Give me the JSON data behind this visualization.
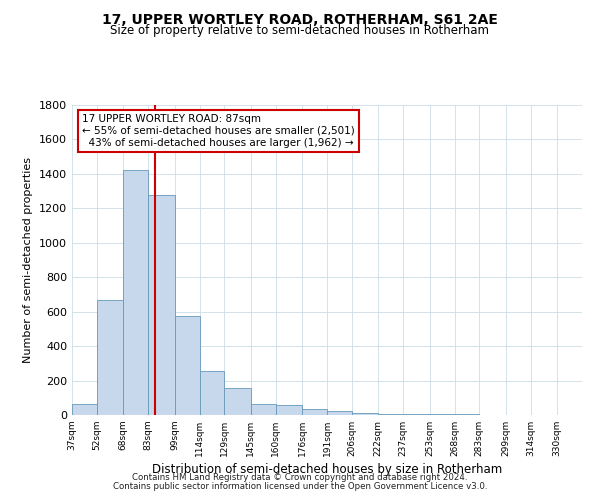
{
  "title": "17, UPPER WORTLEY ROAD, ROTHERHAM, S61 2AE",
  "subtitle": "Size of property relative to semi-detached houses in Rotherham",
  "xlabel": "Distribution of semi-detached houses by size in Rotherham",
  "ylabel": "Number of semi-detached properties",
  "bar_color": "#c8d8ec",
  "bar_edge_color": "#7aа8cc",
  "vline_x": 87,
  "vline_color": "#cc0000",
  "annotation_line1": "17 UPPER WORTLEY ROAD: 87sqm",
  "annotation_line2": "← 55% of semi-detached houses are smaller (2,501)",
  "annotation_line3": "  43% of semi-detached houses are larger (1,962) →",
  "annotation_box_color": "#cc0000",
  "footnote1": "Contains HM Land Registry data © Crown copyright and database right 2024.",
  "footnote2": "Contains public sector information licensed under the Open Government Licence v3.0.",
  "bins": [
    37,
    52,
    68,
    83,
    99,
    114,
    129,
    145,
    160,
    176,
    191,
    206,
    222,
    237,
    253,
    268,
    283,
    299,
    314,
    330,
    345
  ],
  "counts": [
    65,
    670,
    1420,
    1280,
    575,
    255,
    155,
    65,
    58,
    35,
    25,
    10,
    8,
    5,
    4,
    3,
    2,
    2,
    1,
    0
  ],
  "ylim": [
    0,
    1800
  ],
  "yticks": [
    0,
    200,
    400,
    600,
    800,
    1000,
    1200,
    1400,
    1600,
    1800
  ]
}
